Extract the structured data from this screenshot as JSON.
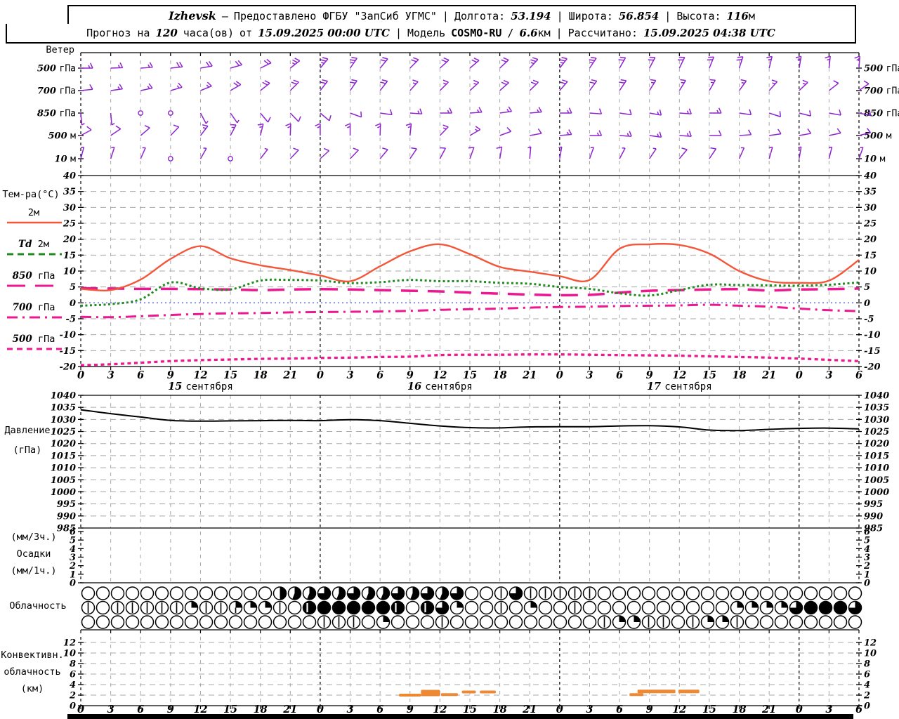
{
  "header": {
    "station": "Izhevsk",
    "dash": "—",
    "provided": "Предоставлено ФГБУ \"ЗапСиб УГМС\"",
    "sep": "|",
    "lon_label": "Долгота:",
    "lon": "53.194",
    "lat_label": "Широта:",
    "lat": "56.854",
    "alt_label": "Высота:",
    "alt": "116",
    "alt_unit": "м",
    "forecast_label": "Прогноз на",
    "hours": "120",
    "hours_unit": "часа(ов)",
    "from_label": "от",
    "init_time": "15.09.2025 00:00 UTC",
    "model_label": "Модель",
    "model": "COSMO-RU",
    "slash": "/",
    "resolution": "6.6",
    "resolution_unit": "км",
    "calc_label": "Рассчитано:",
    "calc_time": "15.09.2025 04:38 UTC"
  },
  "panels": {
    "wind": {
      "title": "Ветер",
      "levels": [
        {
          "num": "500",
          "unit": "гПа"
        },
        {
          "num": "700",
          "unit": "гПа"
        },
        {
          "num": "850",
          "unit": "гПа"
        },
        {
          "num": "500",
          "unit": "м"
        },
        {
          "num": "10",
          "unit": "м"
        }
      ]
    },
    "temp": {
      "title": "Тем-ра(°C)",
      "yticks": [
        40,
        35,
        30,
        25,
        20,
        15,
        10,
        5,
        0,
        -5,
        -10,
        -15,
        -20
      ],
      "legend": [
        {
          "pre": "",
          "name": "2м",
          "color": "#f4563a",
          "width": 2.4,
          "dash": "",
          "legend_dash": ""
        },
        {
          "pre": "Td",
          "name": "2м",
          "color": "#1e8c1e",
          "width": 3,
          "dash": "3 3.5",
          "legend_dash": "9 6"
        },
        {
          "pre": "850",
          "name": "гПа",
          "color": "#ed1790",
          "width": 3.5,
          "dash": "24 14",
          "legend_dash": "26 14"
        },
        {
          "pre": "700",
          "name": "гПа",
          "color": "#ed1790",
          "width": 3,
          "dash": "15 7 3 7",
          "legend_dash": "15 7 3 7"
        },
        {
          "pre": "500",
          "name": "гПа",
          "color": "#ed1790",
          "width": 3.3,
          "dash": "5 4.5",
          "legend_dash": "8 6"
        }
      ]
    },
    "pressure": {
      "title_1": "Давление",
      "title_2": "(гПа)",
      "yticks": [
        1040,
        1035,
        1030,
        1025,
        1020,
        1015,
        1010,
        1005,
        1000,
        995,
        990,
        985
      ]
    },
    "precip": {
      "title_1": "(мм/3ч.)",
      "title_2": "Осадки",
      "title_3": "(мм/1ч.)",
      "yticks": [
        6,
        5,
        4,
        3,
        2,
        1,
        0
      ]
    },
    "cloud": {
      "title": "Облачность"
    },
    "conv": {
      "title_1": "Конвективн.",
      "title_2": "облачность",
      "title_3": "(км)",
      "yticks": [
        12,
        10,
        8,
        6,
        4,
        2,
        0
      ]
    }
  },
  "axis": {
    "hour_labels": [
      "0",
      "3",
      "6",
      "9",
      "12",
      "15",
      "18",
      "21",
      "0",
      "3",
      "6",
      "9",
      "12",
      "15",
      "18",
      "21",
      "0",
      "3",
      "6",
      "9",
      "12",
      "15",
      "18",
      "21",
      "0",
      "3",
      "6"
    ],
    "dates": [
      {
        "num": "15",
        "word": "сентября",
        "hour": 12
      },
      {
        "num": "16",
        "word": "сентября",
        "hour": 36
      },
      {
        "num": "17",
        "word": "сентября",
        "hour": 60
      }
    ]
  },
  "colors": {
    "purple": "#8e24cf",
    "red": "#f4563a",
    "green": "#1e8c1e",
    "pink": "#ed1790",
    "blue_zero": "#5050ff",
    "grid": "#a8a8a8",
    "orange": "#ee8833",
    "black": "#000000"
  },
  "chart_data": {
    "type": "meteogram",
    "step_hours": 3,
    "x_hours": [
      0,
      3,
      6,
      9,
      12,
      15,
      18,
      21,
      24,
      27,
      30,
      33,
      36,
      39,
      42,
      45,
      48,
      51,
      54,
      57,
      60,
      63,
      66,
      69,
      72,
      75,
      78
    ],
    "wind_barbs": {
      "levels": [
        {
          "level": "500 гПа",
          "dir": [
            0,
            2,
            4,
            6,
            10,
            16,
            26,
            38,
            50,
            55,
            50,
            45,
            42,
            40,
            43,
            47,
            52,
            56,
            60,
            62,
            64,
            68,
            72,
            76,
            80,
            84,
            86
          ],
          "ticks": [
            3,
            3,
            3,
            4,
            4,
            4,
            4,
            5,
            5,
            5,
            4,
            4,
            4,
            4,
            4,
            5,
            5,
            5,
            4,
            4,
            4,
            4,
            4,
            3,
            3,
            3,
            3
          ]
        },
        {
          "level": "700 гПа",
          "dir": [
            6,
            8,
            12,
            16,
            22,
            30,
            38,
            45,
            52,
            55,
            52,
            48,
            45,
            42,
            41,
            44,
            49,
            53,
            56,
            58,
            58,
            60,
            54,
            48,
            43,
            38,
            35
          ],
          "ticks": [
            2,
            3,
            3,
            3,
            3,
            4,
            4,
            4,
            4,
            4,
            4,
            3,
            3,
            3,
            4,
            4,
            4,
            4,
            4,
            3,
            3,
            3,
            3,
            3,
            3,
            2,
            2
          ]
        },
        {
          "level": "850 гПа",
          "dir": [
            -85,
            -85,
            0,
            0,
            -62,
            -55,
            -50,
            -46,
            -40,
            -20,
            -8,
            -4,
            0,
            4,
            8,
            5,
            0,
            -4,
            -8,
            -10,
            -4,
            0,
            -8,
            -18,
            -14,
            -10,
            -12
          ],
          "ticks": [
            1,
            1,
            0,
            0,
            1,
            1,
            2,
            2,
            2,
            2,
            2,
            3,
            3,
            3,
            3,
            3,
            3,
            2,
            2,
            3,
            3,
            3,
            2,
            2,
            2,
            2,
            2
          ]
        },
        {
          "level": "500 м",
          "dir": [
            28,
            34,
            40,
            46,
            52,
            62,
            76,
            88,
            90,
            90,
            88,
            84,
            46,
            30,
            20,
            10,
            5,
            0,
            -4,
            -8,
            -4,
            0,
            4,
            8,
            10,
            12,
            14
          ],
          "ticks": [
            2,
            2,
            2,
            2,
            3,
            3,
            3,
            3,
            3,
            3,
            3,
            3,
            3,
            3,
            2,
            2,
            3,
            3,
            3,
            3,
            3,
            2,
            2,
            2,
            2,
            2,
            2
          ]
        },
        {
          "level": "10 м",
          "dir": [
            75,
            72,
            66,
            0,
            60,
            0,
            52,
            46,
            42,
            46,
            50,
            56,
            62,
            70,
            80,
            85,
            80,
            70,
            62,
            56,
            50,
            56,
            66,
            74,
            80,
            76,
            70
          ],
          "ticks": [
            1,
            1,
            1,
            0,
            1,
            0,
            1,
            2,
            2,
            2,
            2,
            2,
            2,
            2,
            2,
            1,
            1,
            1,
            1,
            1,
            2,
            2,
            1,
            1,
            1,
            1,
            1
          ]
        }
      ]
    },
    "temperature": {
      "units": "°C",
      "ylim": [
        -20,
        40
      ],
      "series": [
        {
          "name": "2м",
          "values": [
            4.4,
            4.0,
            7.3,
            13.8,
            17.8,
            14.0,
            11.8,
            10.3,
            8.6,
            6.8,
            11.5,
            16.2,
            18.4,
            15.3,
            11.3,
            9.8,
            8.4,
            7.2,
            17.0,
            18.4,
            18.2,
            15.5,
            10.0,
            6.8,
            6.3,
            7.0,
            13.5
          ]
        },
        {
          "name": "Td 2м",
          "values": [
            -0.9,
            -0.4,
            1.1,
            6.4,
            4.6,
            4.2,
            7.0,
            7.2,
            7.0,
            6.2,
            6.5,
            7.2,
            6.8,
            6.8,
            6.3,
            6.0,
            5.0,
            4.4,
            3.0,
            2.3,
            4.0,
            5.7,
            5.6,
            5.5,
            5.4,
            5.7,
            6.4
          ]
        },
        {
          "name": "850 гПа",
          "values": [
            4.6,
            4.5,
            4.4,
            4.4,
            4.3,
            4.2,
            4.0,
            4.2,
            4.3,
            4.2,
            4.0,
            3.8,
            3.6,
            3.2,
            2.9,
            2.6,
            2.4,
            2.5,
            3.2,
            3.8,
            4.0,
            4.2,
            4.3,
            3.9,
            4.2,
            4.3,
            4.5
          ]
        },
        {
          "name": "700 гПа",
          "values": [
            -4.4,
            -4.5,
            -4.2,
            -3.8,
            -3.5,
            -3.3,
            -3.2,
            -3.0,
            -2.9,
            -2.8,
            -2.7,
            -2.5,
            -2.2,
            -2.0,
            -1.8,
            -1.5,
            -1.3,
            -1.2,
            -1.0,
            -0.9,
            -0.8,
            -0.6,
            -0.9,
            -1.2,
            -1.8,
            -2.3,
            -2.6
          ]
        },
        {
          "name": "500 гПа",
          "values": [
            -19.6,
            -19.3,
            -18.8,
            -18.3,
            -18.0,
            -17.8,
            -17.6,
            -17.5,
            -17.3,
            -17.2,
            -17.0,
            -16.9,
            -16.4,
            -16.3,
            -16.3,
            -16.2,
            -16.2,
            -16.3,
            -16.4,
            -16.5,
            -16.6,
            -16.8,
            -17.0,
            -17.2,
            -17.5,
            -17.9,
            -18.3
          ]
        }
      ]
    },
    "pressure": {
      "units": "гПа",
      "ylim": [
        985,
        1040
      ],
      "values": [
        1034.0,
        1032.4,
        1031.0,
        1029.6,
        1029.3,
        1029.4,
        1029.5,
        1029.6,
        1029.5,
        1029.9,
        1029.5,
        1028.4,
        1027.3,
        1026.6,
        1026.5,
        1026.9,
        1027.0,
        1027.0,
        1027.3,
        1027.4,
        1026.9,
        1025.6,
        1025.4,
        1025.9,
        1026.3,
        1026.4,
        1026.1
      ]
    },
    "precip": {
      "units": "мм",
      "ylim": [
        0,
        6
      ],
      "values": [
        0,
        0,
        0,
        0,
        0,
        0,
        0,
        0,
        0,
        0,
        0,
        0,
        0,
        0,
        0,
        0,
        0,
        0,
        0,
        0,
        0,
        0,
        0,
        0,
        0,
        0,
        0
      ]
    },
    "cloud_okta": {
      "rows": [
        [
          0,
          0,
          0,
          0,
          0,
          0,
          0,
          0,
          0,
          0,
          0,
          0,
          0,
          4,
          5,
          5,
          6,
          5,
          6,
          5,
          5,
          6,
          5,
          6,
          5,
          6,
          0,
          0,
          1,
          6,
          1,
          1,
          1,
          1,
          1,
          0,
          0,
          0,
          0,
          0,
          0,
          0,
          0,
          0,
          0,
          0,
          0,
          0,
          0,
          0,
          0,
          0,
          0
        ],
        [
          1,
          0,
          1,
          1,
          1,
          1,
          1,
          2,
          1,
          1,
          3,
          2,
          2,
          1,
          0,
          7,
          8,
          8,
          8,
          8,
          8,
          7,
          0,
          7,
          6,
          2,
          0,
          0,
          1,
          0,
          2,
          0,
          0,
          1,
          0,
          0,
          0,
          0,
          0,
          0,
          0,
          0,
          0,
          0,
          2,
          2,
          2,
          2,
          6,
          8,
          8,
          8,
          6
        ],
        [
          0,
          0,
          0,
          0,
          0,
          0,
          0,
          0,
          0,
          0,
          0,
          0,
          0,
          0,
          0,
          0,
          1,
          1,
          1,
          0,
          2,
          0,
          0,
          0,
          1,
          0,
          0,
          0,
          0,
          0,
          0,
          0,
          0,
          0,
          0,
          1,
          2,
          2,
          1,
          1,
          0,
          1,
          2,
          2,
          1,
          0,
          0,
          0,
          0,
          0,
          0,
          0,
          0
        ]
      ]
    },
    "convective_clouds_km": {
      "bars": [
        {
          "h1": 31.9,
          "h2": 34.1,
          "km": 2.0,
          "px": 4
        },
        {
          "h1": 34.1,
          "h2": 36.0,
          "km": 2.4,
          "px": 9
        },
        {
          "h1": 36.1,
          "h2": 37.8,
          "km": 2.1,
          "px": 4
        },
        {
          "h1": 38.2,
          "h2": 39.6,
          "km": 2.6,
          "px": 4
        },
        {
          "h1": 40.0,
          "h2": 41.6,
          "km": 2.6,
          "px": 4
        },
        {
          "h1": 55.0,
          "h2": 56.4,
          "km": 2.1,
          "px": 4
        },
        {
          "h1": 55.8,
          "h2": 59.6,
          "km": 2.7,
          "px": 5
        },
        {
          "h1": 59.9,
          "h2": 62.0,
          "km": 2.7,
          "px": 5
        }
      ]
    }
  }
}
